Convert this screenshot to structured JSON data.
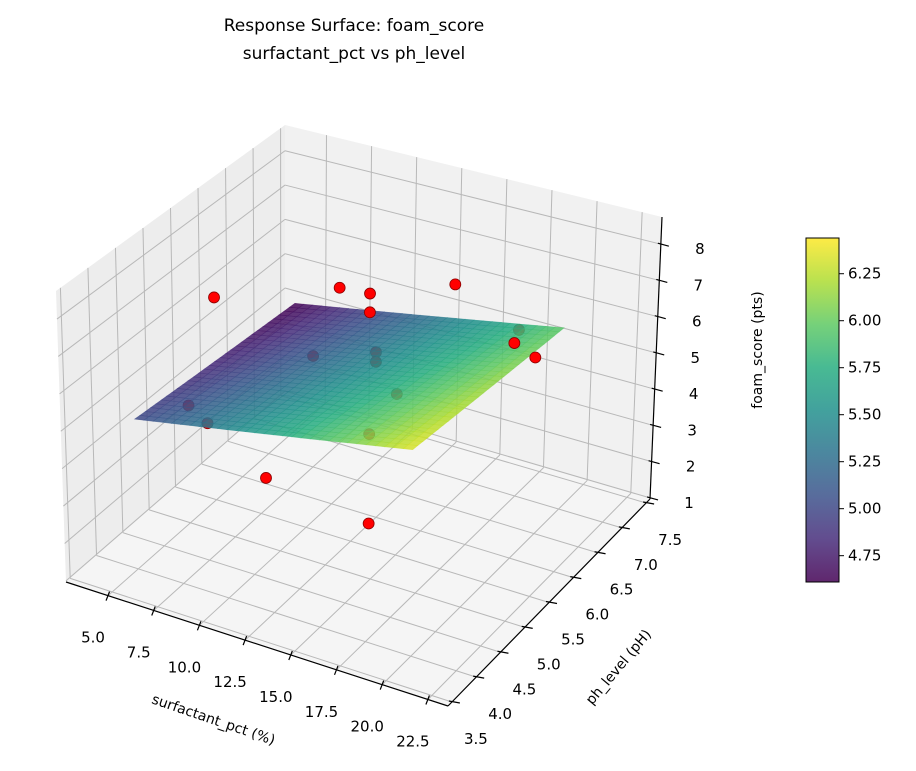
{
  "chart_data": {
    "type": "surface3d",
    "title": [
      "Response Surface: foam_score",
      "surfactant_pct vs ph_level"
    ],
    "xlabel": "surfactant_pct (%)",
    "ylabel": "ph_level (pH)",
    "zlabel": "foam_score (pts)",
    "xlim": [
      2.7,
      23.6
    ],
    "ylim": [
      3.42,
      7.58
    ],
    "zlim": [
      0.97,
      8.75
    ],
    "xticks": [
      "5.0",
      "7.5",
      "10.0",
      "12.5",
      "15.0",
      "17.5",
      "20.0",
      "22.5"
    ],
    "yticks": [
      "3.5",
      "4.0",
      "4.5",
      "5.0",
      "5.5",
      "6.0",
      "6.5",
      "7.0",
      "7.5"
    ],
    "zticks": [
      "1",
      "2",
      "3",
      "4",
      "5",
      "6",
      "7",
      "8"
    ],
    "grid": true,
    "surface": {
      "cmap": "viridis",
      "x": [
        5,
        20
      ],
      "y": [
        4,
        7
      ],
      "z": [
        [
          5.0,
          6.35
        ],
        [
          4.61,
          5.96
        ]
      ]
    },
    "points": [
      {
        "x": 5.0,
        "y": 5.0,
        "z": 4.19
      },
      {
        "x": 7.5,
        "y": 4.5,
        "z": 4.67
      },
      {
        "x": 5.0,
        "y": 5.5,
        "z": 6.58
      },
      {
        "x": 13.5,
        "y": 3.5,
        "z": 5.27
      },
      {
        "x": 7.5,
        "y": 7.0,
        "z": 5.4
      },
      {
        "x": 7.5,
        "y": 6.5,
        "z": 4.09
      },
      {
        "x": 15.0,
        "y": 5.5,
        "z": 5.33
      },
      {
        "x": 12.5,
        "y": 7.5,
        "z": 5.55
      },
      {
        "x": 17.5,
        "y": 7.0,
        "z": 5.57
      },
      {
        "x": 20.0,
        "y": 6.0,
        "z": 6.78
      },
      {
        "x": 22.5,
        "y": 5.5,
        "z": 7.33
      },
      {
        "x": 13.5,
        "y": 5.5,
        "z": 7.85
      },
      {
        "x": 13.5,
        "y": 5.5,
        "z": 7.34
      },
      {
        "x": 11.0,
        "y": 6.5,
        "z": 4.69
      },
      {
        "x": 11.0,
        "y": 6.5,
        "z": 4.42
      },
      {
        "x": 13.5,
        "y": 5.5,
        "z": 4.03
      },
      {
        "x": 13.5,
        "y": 5.5,
        "z": 1.6
      }
    ],
    "point_color": "#ff0000",
    "point_edge_color": "#8b0000",
    "colorbar": {
      "cmap": "viridis",
      "range": [
        4.61,
        6.44
      ],
      "ticks": [
        "4.75",
        "5.00",
        "5.25",
        "5.50",
        "5.75",
        "6.00",
        "6.25"
      ]
    }
  }
}
